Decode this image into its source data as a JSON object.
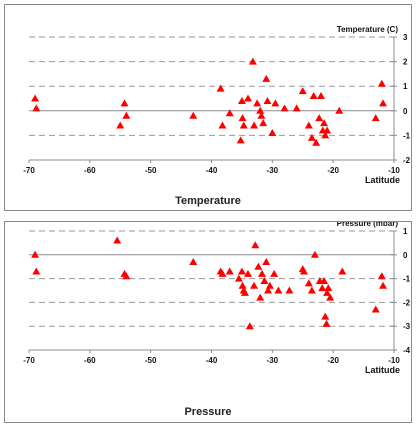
{
  "chart_data": [
    {
      "type": "scatter",
      "title": "Temperature",
      "ylabel": "Temperature (C)",
      "xlabel": "Latitude",
      "xlim": [
        -70,
        -10
      ],
      "ylim": [
        -2,
        3
      ],
      "xticks": [
        -70,
        -60,
        -50,
        -40,
        -30,
        -20,
        -10
      ],
      "yticks": [
        -2,
        -1,
        0,
        1,
        2,
        3
      ],
      "grid": "horizontal dashed",
      "y_axis_side": "right",
      "marker_color": "#ff0000",
      "points": [
        {
          "x": -69,
          "y": 0.5
        },
        {
          "x": -68.8,
          "y": 0.1
        },
        {
          "x": -55,
          "y": -0.6
        },
        {
          "x": -54.3,
          "y": 0.3
        },
        {
          "x": -54,
          "y": -0.2
        },
        {
          "x": -43,
          "y": -0.2
        },
        {
          "x": -38.5,
          "y": 0.9
        },
        {
          "x": -38.2,
          "y": -0.6
        },
        {
          "x": -37,
          "y": -0.1
        },
        {
          "x": -35.2,
          "y": -1.2
        },
        {
          "x": -35,
          "y": 0.4
        },
        {
          "x": -34.9,
          "y": -0.3
        },
        {
          "x": -34.7,
          "y": -0.6
        },
        {
          "x": -34,
          "y": 0.5
        },
        {
          "x": -33.2,
          "y": 2.0
        },
        {
          "x": -33,
          "y": -0.6
        },
        {
          "x": -32.5,
          "y": 0.3
        },
        {
          "x": -32,
          "y": 0.0
        },
        {
          "x": -31.8,
          "y": -0.2
        },
        {
          "x": -31.5,
          "y": -0.5
        },
        {
          "x": -31,
          "y": 1.3
        },
        {
          "x": -30.8,
          "y": 0.4
        },
        {
          "x": -30,
          "y": -0.9
        },
        {
          "x": -29.5,
          "y": 0.3
        },
        {
          "x": -28,
          "y": 0.1
        },
        {
          "x": -26,
          "y": 0.1
        },
        {
          "x": -25,
          "y": 0.8
        },
        {
          "x": -24,
          "y": -0.6
        },
        {
          "x": -23.5,
          "y": -1.1
        },
        {
          "x": -23.2,
          "y": 0.6
        },
        {
          "x": -22.8,
          "y": -1.3
        },
        {
          "x": -22.3,
          "y": -0.3
        },
        {
          "x": -22,
          "y": 0.6
        },
        {
          "x": -21.7,
          "y": -0.8
        },
        {
          "x": -21.5,
          "y": -0.5
        },
        {
          "x": -21.3,
          "y": -1.0
        },
        {
          "x": -21,
          "y": -0.8
        },
        {
          "x": -19,
          "y": 0.0
        },
        {
          "x": -13,
          "y": -0.3
        },
        {
          "x": -12,
          "y": 1.1
        },
        {
          "x": -11.8,
          "y": 0.3
        }
      ]
    },
    {
      "type": "scatter",
      "title": "Pressure",
      "ylabel": "Pressure (mbar)",
      "xlabel": "Latitude",
      "xlim": [
        -70,
        -10
      ],
      "ylim": [
        -4,
        1
      ],
      "xticks": [
        -70,
        -60,
        -50,
        -40,
        -30,
        -20,
        -10
      ],
      "yticks": [
        -4,
        -3,
        -2,
        -1,
        0,
        1
      ],
      "grid": "horizontal dashed",
      "y_axis_side": "right",
      "marker_color": "#ff0000",
      "points": [
        {
          "x": -69,
          "y": 0.0
        },
        {
          "x": -68.8,
          "y": -0.7
        },
        {
          "x": -55.5,
          "y": 0.6
        },
        {
          "x": -54.3,
          "y": -0.8
        },
        {
          "x": -54,
          "y": -0.9
        },
        {
          "x": -43,
          "y": -0.3
        },
        {
          "x": -38.5,
          "y": -0.7
        },
        {
          "x": -38.2,
          "y": -0.8
        },
        {
          "x": -37,
          "y": -0.7
        },
        {
          "x": -35.5,
          "y": -1.0
        },
        {
          "x": -35,
          "y": -0.7
        },
        {
          "x": -34.9,
          "y": -1.3
        },
        {
          "x": -34.7,
          "y": -1.5
        },
        {
          "x": -34.5,
          "y": -1.6
        },
        {
          "x": -34,
          "y": -0.8
        },
        {
          "x": -33.7,
          "y": -3.0
        },
        {
          "x": -33,
          "y": -1.3
        },
        {
          "x": -32.8,
          "y": 0.4
        },
        {
          "x": -32.3,
          "y": -0.5
        },
        {
          "x": -32,
          "y": -1.8
        },
        {
          "x": -31.7,
          "y": -0.8
        },
        {
          "x": -31.3,
          "y": -1.1
        },
        {
          "x": -31,
          "y": -0.3
        },
        {
          "x": -30.7,
          "y": -1.5
        },
        {
          "x": -30.4,
          "y": -1.3
        },
        {
          "x": -29.7,
          "y": -0.8
        },
        {
          "x": -29,
          "y": -1.5
        },
        {
          "x": -27.2,
          "y": -1.5
        },
        {
          "x": -25,
          "y": -0.6
        },
        {
          "x": -24.8,
          "y": -0.7
        },
        {
          "x": -24,
          "y": -1.2
        },
        {
          "x": -23.5,
          "y": -1.5
        },
        {
          "x": -23,
          "y": 0.0
        },
        {
          "x": -22.2,
          "y": -1.1
        },
        {
          "x": -21.8,
          "y": -1.4
        },
        {
          "x": -21.5,
          "y": -1.1
        },
        {
          "x": -21.3,
          "y": -2.6
        },
        {
          "x": -21.1,
          "y": -2.9
        },
        {
          "x": -21,
          "y": -1.6
        },
        {
          "x": -20.8,
          "y": -1.4
        },
        {
          "x": -20.5,
          "y": -1.8
        },
        {
          "x": -18.5,
          "y": -0.7
        },
        {
          "x": -13,
          "y": -2.3
        },
        {
          "x": -12,
          "y": -0.9
        },
        {
          "x": -11.8,
          "y": -1.3
        }
      ]
    }
  ]
}
